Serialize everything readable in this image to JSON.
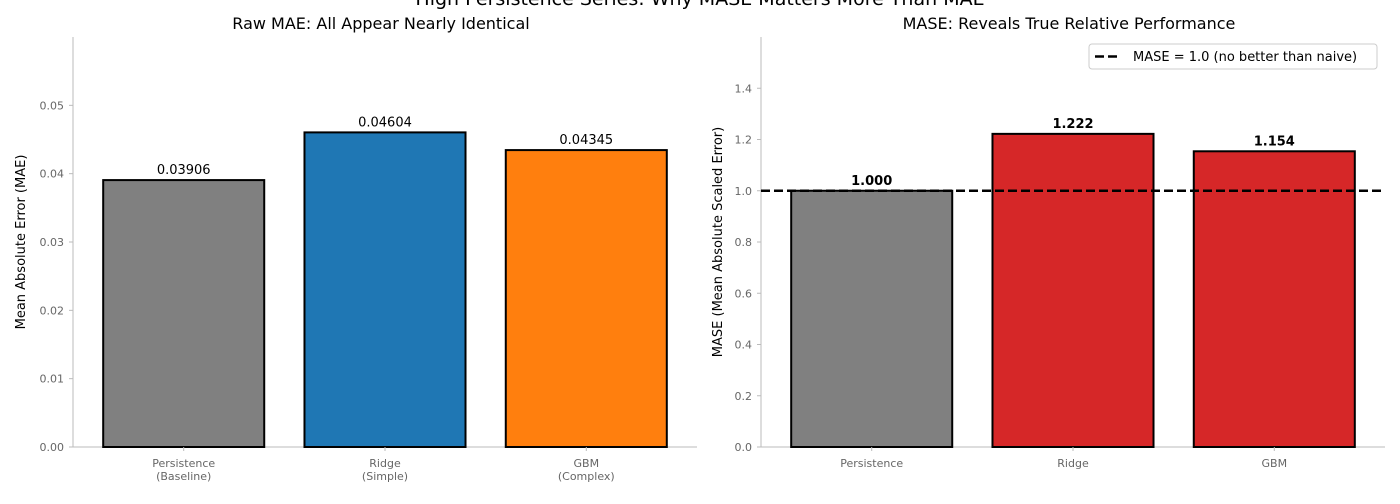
{
  "figure": {
    "suptitle": "High Persistence Series: Why MASE Matters More Than MAE"
  },
  "chart_data": [
    {
      "type": "bar",
      "title": "Raw MAE: All Appear Nearly Identical",
      "xlabel": "",
      "ylabel": "Mean Absolute Error (MAE)",
      "categories": [
        "Persistence\n(Baseline)",
        "Ridge\n(Simple)",
        "GBM\n(Complex)"
      ],
      "values": [
        0.03906,
        0.04604,
        0.04345
      ],
      "value_labels": [
        "0.03906",
        "0.04604",
        "0.04345"
      ],
      "bar_colors": [
        "#808080",
        "#1f77b4",
        "#ff7f0e"
      ],
      "ylim": [
        0,
        0.06
      ],
      "yticks": [
        0.0,
        0.01,
        0.02,
        0.03,
        0.04,
        0.05
      ],
      "ytick_labels": [
        "0.00",
        "0.01",
        "0.02",
        "0.03",
        "0.04",
        "0.05"
      ],
      "grid": false
    },
    {
      "type": "bar",
      "title": "MASE: Reveals True Relative Performance",
      "xlabel": "",
      "ylabel": "MASE (Mean Absolute Scaled Error)",
      "categories": [
        "Persistence",
        "Ridge",
        "GBM"
      ],
      "values": [
        1.0,
        1.222,
        1.154
      ],
      "value_labels": [
        "1.000",
        "1.222",
        "1.154"
      ],
      "bar_colors": [
        "#808080",
        "#d62728",
        "#d62728"
      ],
      "ylim": [
        0,
        1.6
      ],
      "yticks": [
        0.0,
        0.2,
        0.4,
        0.6,
        0.8,
        1.0,
        1.2,
        1.4
      ],
      "ytick_labels": [
        "0.0",
        "0.2",
        "0.4",
        "0.6",
        "0.8",
        "1.0",
        "1.2",
        "1.4"
      ],
      "reference_line": {
        "y": 1.0,
        "style": "dashed",
        "color": "#000000"
      },
      "legend": {
        "entries": [
          "MASE = 1.0 (no better than naive)"
        ],
        "placement": "upper-right"
      },
      "grid": false
    }
  ]
}
